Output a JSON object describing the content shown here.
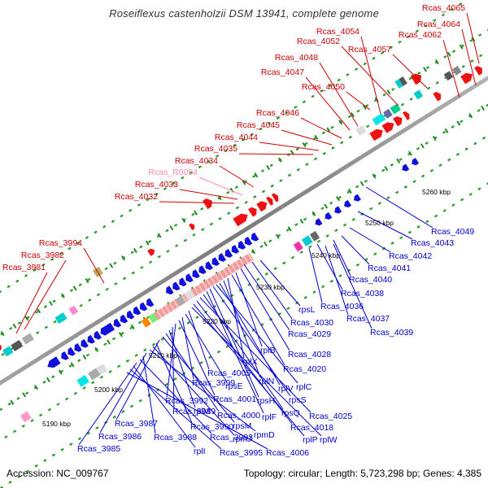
{
  "title": "Roseiflexus castenholzii DSM 13941, complete genome",
  "footer": {
    "accession": "Accession: NC_009767",
    "summary": "Topology: circular; Length: 5,723,298 bp; Genes: 4,385"
  },
  "colors": {
    "plus_label": "#cc0000",
    "minus_label": "#0000cc",
    "rna_label": "#ff88aa",
    "backbone": "#888888"
  },
  "kbp_ticks": [
    "5190 kbp",
    "5200 kbp",
    "5210 kbp",
    "5220 kbp",
    "5230 kbp",
    "5240 kbp",
    "5250 kbp",
    "5260 kbp"
  ],
  "plus_labels": [
    "Rcas_4065",
    "Rcas_4064",
    "Rcas_4062",
    "Rcas_4057",
    "Rcas_4054",
    "Rcas_4052",
    "Rcas_4048",
    "Rcas_4047",
    "Rcas_4050",
    "Rcas_4046",
    "Rcas_4045",
    "Rcas_4044",
    "Rcas_4035",
    "Rcas_4034",
    "Rcas_R0054",
    "Rcas_4033",
    "Rcas_4032",
    "Rcas_3994",
    "Rcas_3982",
    "Rcas_3981"
  ],
  "minus_labels": [
    "Rcas_4049",
    "Rcas_4043",
    "Rcas_4042",
    "Rcas_4041",
    "Rcas_4040",
    "Rcas_4038",
    "Rcas_4036",
    "Rcas_4037",
    "Rcas_4039",
    "rpsL",
    "Rcas_4030",
    "Rcas_4029",
    "Rcas_4028",
    "rplB",
    "Rcas_4020",
    "rplX",
    "rplN",
    "rplV",
    "rplC",
    "rpsS",
    "rpsH",
    "rplF",
    "rpsQ",
    "Rcas_4025",
    "Rcas_4018",
    "rplP",
    "rplW",
    "Rcas_4005",
    "rpsE",
    "Rcas_3999",
    "Rcas_4001",
    "Rcas_3992",
    "Rcas_3989",
    "rplM",
    "Rcas_4000",
    "rpsM",
    "Rcas_3987",
    "Rcas_3990",
    "rpmJ",
    "rpmD",
    "Rcas_3986",
    "Rcas_3988",
    "Rcas_3993",
    "Rcas_3985",
    "rplI",
    "Rcas_3995",
    "Rcas_4006"
  ]
}
